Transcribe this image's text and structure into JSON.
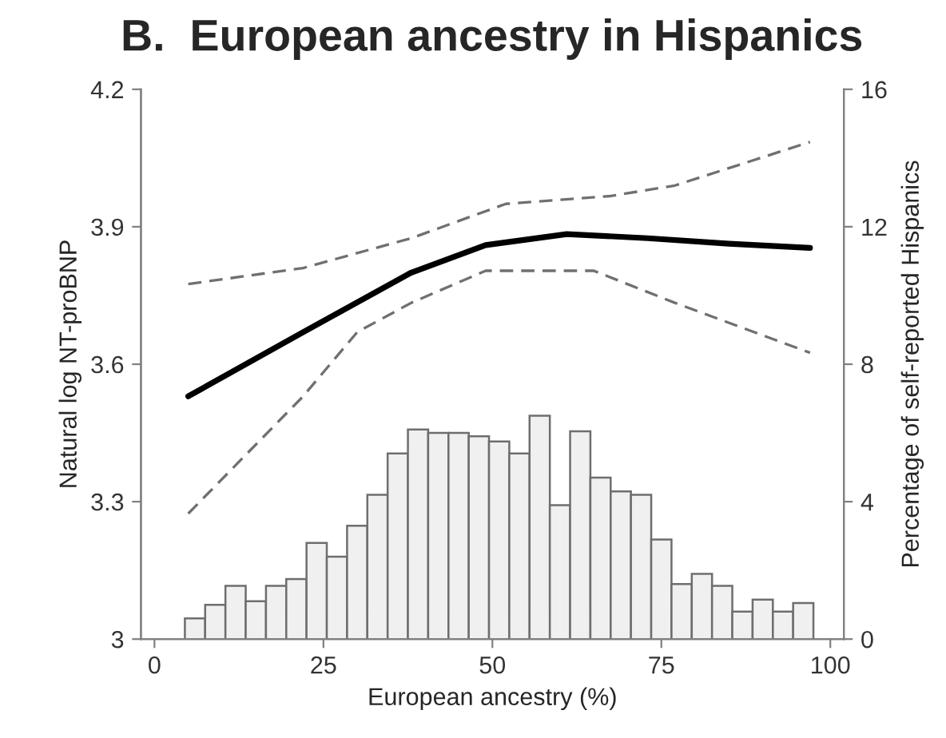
{
  "chart_data": {
    "type": "line",
    "title": "B.  European ancestry in Hispanics",
    "xlabel": "European ancestry (%)",
    "ylabel": "Natural log NT-proBNP",
    "y2label": "Percentage of self-reported Hispanics",
    "xlim": [
      -2,
      102
    ],
    "xticks": [
      0,
      25,
      50,
      75,
      100
    ],
    "ylim": [
      3,
      4.2
    ],
    "yticks": [
      3,
      3.3,
      3.6,
      3.9,
      4.2
    ],
    "y2lim": [
      0,
      16
    ],
    "y2ticks": [
      0,
      4,
      8,
      12,
      16
    ],
    "grid": false,
    "legend": false,
    "series": [
      {
        "type": "histogram",
        "axis": "y2",
        "color": "#f0f0f0",
        "bins": [
          4.5,
          7.5,
          10.5,
          13.5,
          16.5,
          19.5,
          22.5,
          25.5,
          28.5,
          31.5,
          34.5,
          37.5,
          40.5,
          43.5,
          46.5,
          49.5,
          52.5,
          55.5,
          58.5,
          61.5,
          64.5,
          67.5,
          70.5,
          73.5,
          76.5,
          79.5,
          82.5,
          85.5,
          88.5,
          91.5,
          94.5,
          97.5
        ],
        "values": [
          0.6,
          1.0,
          1.55,
          1.1,
          1.55,
          1.75,
          2.8,
          2.4,
          3.3,
          4.2,
          5.4,
          6.1,
          6.0,
          6.0,
          5.9,
          5.75,
          5.4,
          6.5,
          3.9,
          6.05,
          4.7,
          4.3,
          4.2,
          2.9,
          1.6,
          1.9,
          1.55,
          0.8,
          1.15,
          0.8,
          1.05
        ]
      },
      {
        "line_style": "dashed",
        "color": "#707070",
        "x": [
          5,
          22,
          38,
          52,
          67.5,
          77,
          97
        ],
        "values": [
          3.775,
          3.81,
          3.875,
          3.95,
          3.967,
          3.99,
          4.085
        ]
      },
      {
        "line_style": "dashed",
        "color": "#707070",
        "x": [
          5,
          22,
          30,
          38,
          49,
          65,
          77,
          97
        ],
        "values": [
          3.274,
          3.53,
          3.67,
          3.734,
          3.804,
          3.804,
          3.734,
          3.625
        ]
      },
      {
        "line_style": "solid",
        "color": "#000000",
        "x": [
          5,
          22,
          38,
          49,
          61,
          73,
          85,
          97
        ],
        "values": [
          3.53,
          3.67,
          3.8,
          3.86,
          3.884,
          3.875,
          3.863,
          3.854
        ]
      }
    ]
  }
}
